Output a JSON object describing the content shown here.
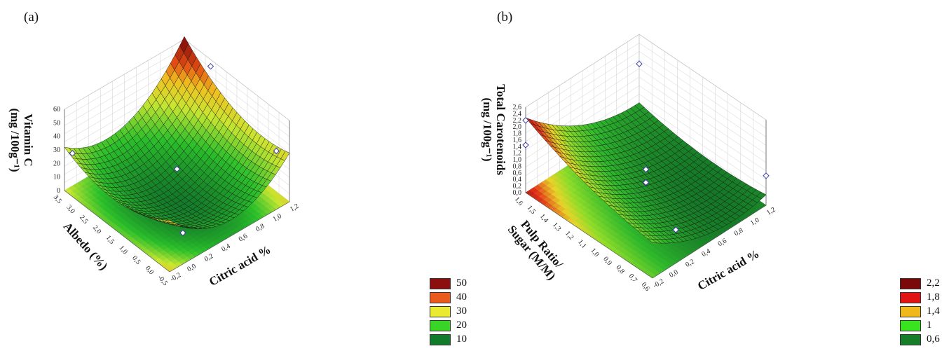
{
  "chart_data": [
    {
      "panel_label": "(a)",
      "type": "surface3d",
      "xlabel": "Citric acid %",
      "ylabel": "Albedo (%)",
      "zlabel_line1": "Vitamin C",
      "zlabel_line2": "(mg /100g⁻¹)",
      "x_ticks": [
        "-0,2",
        "0,0",
        "0,2",
        "0,4",
        "0,6",
        "0,8",
        "1,0",
        "1,2"
      ],
      "y_ticks": [
        "-0,5",
        "0,0",
        "0,5",
        "1,0",
        "1,5",
        "2,0",
        "2,5",
        "3,0",
        "3,5"
      ],
      "z_ticks": [
        "0",
        "10",
        "20",
        "30",
        "40",
        "50",
        "60"
      ],
      "xlim": [
        -0.2,
        1.2
      ],
      "ylim": [
        -0.5,
        3.5
      ],
      "zlim": [
        0,
        60
      ],
      "surface_model": {
        "z0": 4,
        "ax": 5,
        "ay": 5,
        "axx": 25,
        "ayy": 13,
        "axy": 8
      },
      "points": [
        {
          "x": -0.2,
          "y": 3.2,
          "z": 32
        },
        {
          "x": 0.5,
          "y": 1.5,
          "z": 20
        },
        {
          "x": 1.2,
          "y": 2.5,
          "z": 55
        },
        {
          "x": 1.2,
          "y": 0.0,
          "z": 30
        },
        {
          "x": 0.2,
          "y": 0.3,
          "z": 2
        }
      ],
      "legend": [
        {
          "label": "50",
          "color": "#8b0f0f"
        },
        {
          "label": "40",
          "color": "#ea5a1c"
        },
        {
          "label": "30",
          "color": "#eaea32"
        },
        {
          "label": "20",
          "color": "#39d426"
        },
        {
          "label": "10",
          "color": "#117a2b"
        }
      ]
    },
    {
      "panel_label": "(b)",
      "type": "surface3d",
      "xlabel": "Citric acid %",
      "ylabel_line1": "Pulp Ratio/",
      "ylabel_line2": "Sugar (M/M)",
      "zlabel_line1": "Total Carotenoids",
      "zlabel_line2": "(mg /100g⁻¹)",
      "x_ticks": [
        "-0,2",
        "0,0",
        "0,2",
        "0,4",
        "0,6",
        "0,8",
        "1,0",
        "1,2"
      ],
      "y_ticks": [
        "0,6",
        "0,7",
        "0,8",
        "0,9",
        "1,0",
        "1,1",
        "1,2",
        "1,3",
        "1,4",
        "1,5",
        "1,6"
      ],
      "z_ticks": [
        "0,0",
        "0,2",
        "0,4",
        "0,6",
        "0,8",
        "1,0",
        "1,2",
        "1,4",
        "1,6",
        "1,8",
        "2,0",
        "2,2",
        "2,4",
        "2,6"
      ],
      "xlim": [
        -0.2,
        1.2
      ],
      "ylim": [
        0.6,
        1.6
      ],
      "zlim": [
        0,
        2.6
      ],
      "surface_model": {
        "z0": 0.4,
        "ax": -0.45,
        "ay": 0.35,
        "axx": 0.45,
        "ayy": 0.2,
        "axy": -0.25
      },
      "points": [
        {
          "x": -0.2,
          "y": 1.6,
          "z": 2.2
        },
        {
          "x": -0.2,
          "y": 1.6,
          "z": 1.45
        },
        {
          "x": 1.2,
          "y": 1.6,
          "z": 1.7
        },
        {
          "x": 0.5,
          "y": 1.1,
          "z": 0.9
        },
        {
          "x": 0.5,
          "y": 1.1,
          "z": 0.5
        },
        {
          "x": 1.2,
          "y": 0.6,
          "z": 0.9
        },
        {
          "x": 0.4,
          "y": 0.8,
          "z": 0.0
        }
      ],
      "legend": [
        {
          "label": "2,2",
          "color": "#7a0a0a"
        },
        {
          "label": "1,8",
          "color": "#e01414"
        },
        {
          "label": "1,4",
          "color": "#f0b81a"
        },
        {
          "label": "1",
          "color": "#3ae31f"
        },
        {
          "label": "0,6",
          "color": "#167d28"
        }
      ]
    }
  ]
}
